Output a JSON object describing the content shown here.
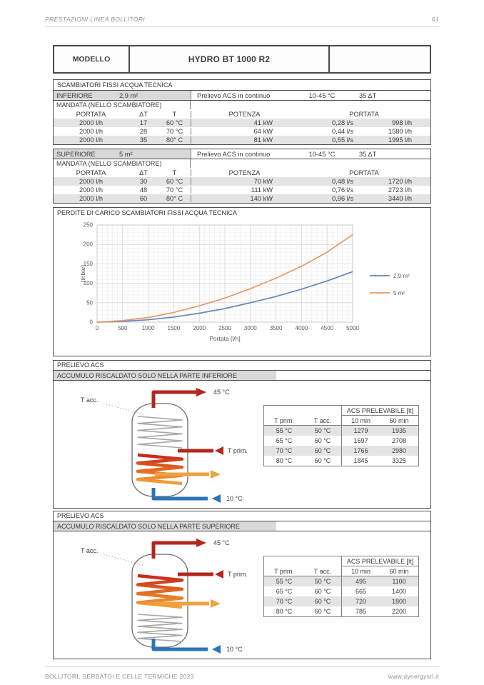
{
  "page": {
    "header_title": "PRESTAZIONI LINEA BOLLITORI",
    "page_number": "61",
    "footer_left": "BOLLITORI, SERBATOI E CELLE TERMICHE 2023",
    "footer_right": "www.dynergysrl.it"
  },
  "model": {
    "label": "MODELLO",
    "value": "HYDRO BT 1000 R2"
  },
  "exchangers": {
    "section_title": "SCAMBIATORI FISSI ACQUA TECNICA",
    "mandata_label": "MANDATA (NELLO SCAMBIATORE)",
    "prelievo_label": "Prelievo ACS in continuo",
    "prelievo_range": "10-45 °C",
    "prelievo_dt": "35 ΔT",
    "col_headers": {
      "portata": "PORTATA",
      "delta_t": "ΔT",
      "t": "T",
      "potenza": "POTENZA",
      "portata_out": "PORTATA"
    },
    "inferiore": {
      "name": "INFERIORE",
      "area": "2,9 m²",
      "rows": [
        [
          "2000 l/h",
          "17",
          "60 °C",
          "41 kW",
          "0,28 l/s",
          "998 l/h"
        ],
        [
          "2000 l/h",
          "28",
          "70 °C",
          "64 kW",
          "0,44 l/s",
          "1580 l/h"
        ],
        [
          "2000 l/h",
          "35",
          "80° C",
          "81 kW",
          "0,55 l/s",
          "1995 l/h"
        ]
      ]
    },
    "superiore": {
      "name": "SUPERIORE",
      "area": "5 m²",
      "rows": [
        [
          "2000 l/h",
          "30",
          "60 °C",
          "70 kW",
          "0,48 l/s",
          "1720 l/h"
        ],
        [
          "2000 l/h",
          "48",
          "70 °C",
          "111 kW",
          "0,76 l/s",
          "2723 l/h"
        ],
        [
          "2000 l/h",
          "60",
          "80° C",
          "140 kW",
          "0,96 l/s",
          "3440 l/h"
        ]
      ]
    }
  },
  "chart_data": {
    "type": "line",
    "title": "PERDITE DI CARICO SCAMBIATORI FISSI ACQUA TECNICA",
    "xlabel": "Portata [l/h]",
    "ylabel": "[mbar]",
    "xlim": [
      0,
      5000
    ],
    "ylim": [
      0,
      250
    ],
    "x_tick_step": 500,
    "y_tick_step": 50,
    "grid": true,
    "legend_position": "right",
    "x": [
      0,
      500,
      1000,
      1500,
      2000,
      2500,
      3000,
      3500,
      4000,
      4500,
      5000
    ],
    "series": [
      {
        "name": "2,9 m²",
        "color": "#6188bc",
        "values": [
          0,
          2,
          6,
          13,
          23,
          35,
          50,
          66,
          85,
          106,
          130
        ]
      },
      {
        "name": "5 m²",
        "color": "#e89a62",
        "values": [
          0,
          4,
          12,
          25,
          42,
          62,
          86,
          113,
          144,
          180,
          225
        ]
      }
    ]
  },
  "prelievo_sections": [
    {
      "title": "PRELIEVO ACS",
      "subtitle": "ACCUMULO RISCALDATO SOLO NELLA PARTE INFERIORE",
      "colored_coil": "bottom",
      "diagram_labels": {
        "outlet": "45 °C",
        "primary": "T prim.",
        "accumulo": "T acc.",
        "inlet": "10 °C"
      },
      "table": {
        "span_header": "ACS PRELEVABILE [lt]",
        "columns": [
          "T prim.",
          "T acc.",
          "10 min",
          "60 min"
        ],
        "rows": [
          [
            "55 °C",
            "50 °C",
            "1279",
            "1935"
          ],
          [
            "65 °C",
            "60 °C",
            "1697",
            "2708"
          ],
          [
            "70 °C",
            "60 °C",
            "1766",
            "2980"
          ],
          [
            "80 °C",
            "60 °C",
            "1845",
            "3325"
          ]
        ]
      }
    },
    {
      "title": "PRELIEVO ACS",
      "subtitle": "ACCUMULO RISCALDATO SOLO NELLA PARTE SUPERIORE",
      "colored_coil": "top",
      "diagram_labels": {
        "outlet": "45 °C",
        "primary": "T prim.",
        "accumulo": "T acc.",
        "inlet": "10 °C"
      },
      "table": {
        "span_header": "ACS PRELEVABILE [lt]",
        "columns": [
          "T prim.",
          "T acc.",
          "10 min",
          "60 min"
        ],
        "rows": [
          [
            "55 °C",
            "50 °C",
            "495",
            "1100"
          ],
          [
            "65 °C",
            "60 °C",
            "665",
            "1400"
          ],
          [
            "70 °C",
            "60 °C",
            "720",
            "1800"
          ],
          [
            "80 °C",
            "60 °C",
            "785",
            "2200"
          ]
        ]
      }
    }
  ],
  "colors": {
    "accent_red": "#b3271e",
    "accent_orange": "#f0a23c",
    "accent_blue": "#2c74b8",
    "stripe": "#e4e4e4",
    "subheader_gray": "#d9d9d9"
  }
}
